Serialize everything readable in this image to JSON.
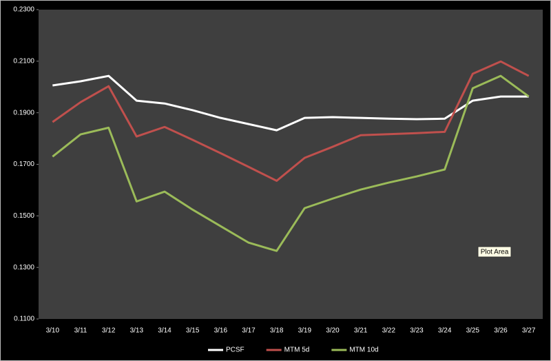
{
  "chart_data": {
    "type": "line",
    "categories": [
      "3/10",
      "3/11",
      "3/12",
      "3/13",
      "3/14",
      "3/15",
      "3/16",
      "3/17",
      "3/18",
      "3/19",
      "3/20",
      "3/21",
      "3/22",
      "3/23",
      "3/24",
      "3/25",
      "3/26",
      "3/27"
    ],
    "series": [
      {
        "name": "PCSF",
        "color": "#ffffff",
        "values": [
          0.2006,
          0.2022,
          0.2043,
          0.1947,
          0.1936,
          0.191,
          0.188,
          0.1856,
          0.1832,
          0.188,
          0.1883,
          0.188,
          0.1877,
          0.1875,
          0.1877,
          0.1947,
          0.1963,
          0.1963
        ]
      },
      {
        "name": "MTM 5d",
        "color": "#c0504d",
        "values": [
          0.1864,
          0.1941,
          0.2003,
          0.1808,
          0.1845,
          0.1795,
          0.1743,
          0.169,
          0.1636,
          0.1725,
          0.1768,
          0.1813,
          0.1817,
          0.1821,
          0.1826,
          0.2051,
          0.2099,
          0.2043
        ]
      },
      {
        "name": "MTM 10d",
        "color": "#9bbb59",
        "values": [
          0.173,
          0.1816,
          0.1842,
          0.1556,
          0.1594,
          0.1524,
          0.146,
          0.1396,
          0.1364,
          0.153,
          0.1567,
          0.1602,
          0.1629,
          0.1653,
          0.168,
          0.1995,
          0.2043,
          0.1963
        ]
      }
    ],
    "ylim": [
      0.11,
      0.23
    ],
    "yticks": [
      {
        "value": 0.11,
        "label": "0.1100"
      },
      {
        "value": 0.13,
        "label": "0.1300"
      },
      {
        "value": 0.15,
        "label": "0.1500"
      },
      {
        "value": 0.17,
        "label": "0.1700"
      },
      {
        "value": 0.19,
        "label": "0.1900"
      },
      {
        "value": 0.21,
        "label": "0.2100"
      },
      {
        "value": 0.23,
        "label": "0.2300"
      }
    ],
    "annotation": "Plot Area",
    "legend": "bottom"
  }
}
